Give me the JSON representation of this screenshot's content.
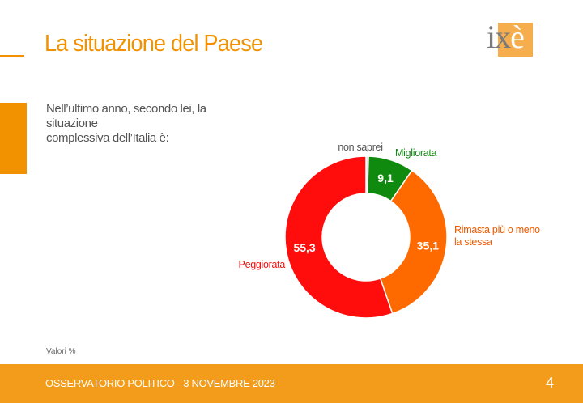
{
  "slide": {
    "title": "La situazione del Paese",
    "logo": {
      "base": "ix",
      "accent": "è"
    },
    "question_line1": "Nell’ultimo anno, secondo lei, la situazione",
    "question_line2": "complessiva dell’Italia è:",
    "footnote": "Valori %",
    "footer_text": "OSSERVATORIO POLITICO - 3 NOVEMBRE 2023",
    "page_number": "4"
  },
  "colors": {
    "accent": "#f39200",
    "footer": "#f39c1b"
  },
  "chart_data": {
    "type": "pie",
    "donut": true,
    "unit": "%",
    "slices": [
      {
        "label": "non saprei",
        "value": 0.5,
        "value_label": "0,5",
        "color": "#e9e9e9",
        "label_color": "#555555"
      },
      {
        "label": "Migliorata",
        "value": 9.1,
        "value_label": "9,1",
        "color": "#0f8a0f",
        "label_color": "#118811"
      },
      {
        "label": "Rimasta più o meno la stessa",
        "value": 35.1,
        "value_label": "35,1",
        "color": "#ff6a00",
        "label_color": "#ee5a00"
      },
      {
        "label": "Peggiorata",
        "value": 55.3,
        "value_label": "55,3",
        "color": "#ff0d0d",
        "label_color": "#ee1111"
      }
    ]
  }
}
